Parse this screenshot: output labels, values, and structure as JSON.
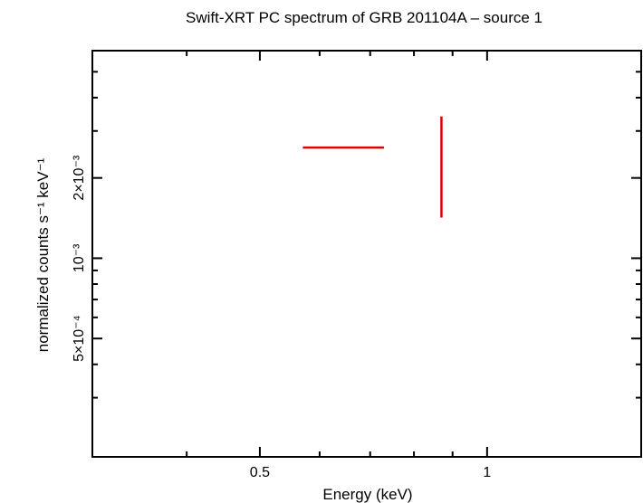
{
  "chart_data": {
    "type": "scatter",
    "title": "Swift-XRT PC spectrum of GRB 201104A – source 1",
    "xlabel": "Energy (keV)",
    "ylabel": "normalized counts s⁻¹ keV⁻¹",
    "x_scale": "log",
    "y_scale": "log",
    "xlim": [
      0.3,
      1.6
    ],
    "ylim": [
      0.00018,
      0.006
    ],
    "x_ticks": [
      {
        "value": 0.5,
        "label": "0.5"
      },
      {
        "value": 1,
        "label": "1"
      }
    ],
    "y_ticks": [
      {
        "value": 0.0005,
        "label": "5×10⁻⁴"
      },
      {
        "value": 0.001,
        "label": "10⁻³"
      },
      {
        "value": 0.002,
        "label": "2×10⁻³"
      }
    ],
    "x_minor_ticks": [
      0.4,
      0.6,
      0.7,
      0.8,
      0.9
    ],
    "y_minor_ticks": [
      0.0003,
      0.0004,
      0.0006,
      0.0007,
      0.0008,
      0.0009,
      0.003,
      0.004,
      0.005
    ],
    "grid": false,
    "series": [
      {
        "color": "#dd0000",
        "points": [
          {
            "x": 0.87,
            "x_err_low": 0.57,
            "x_err_high": 0.73,
            "y": 0.0026,
            "y_err_low": 0.00142,
            "y_err_high": 0.0034
          }
        ]
      }
    ]
  }
}
